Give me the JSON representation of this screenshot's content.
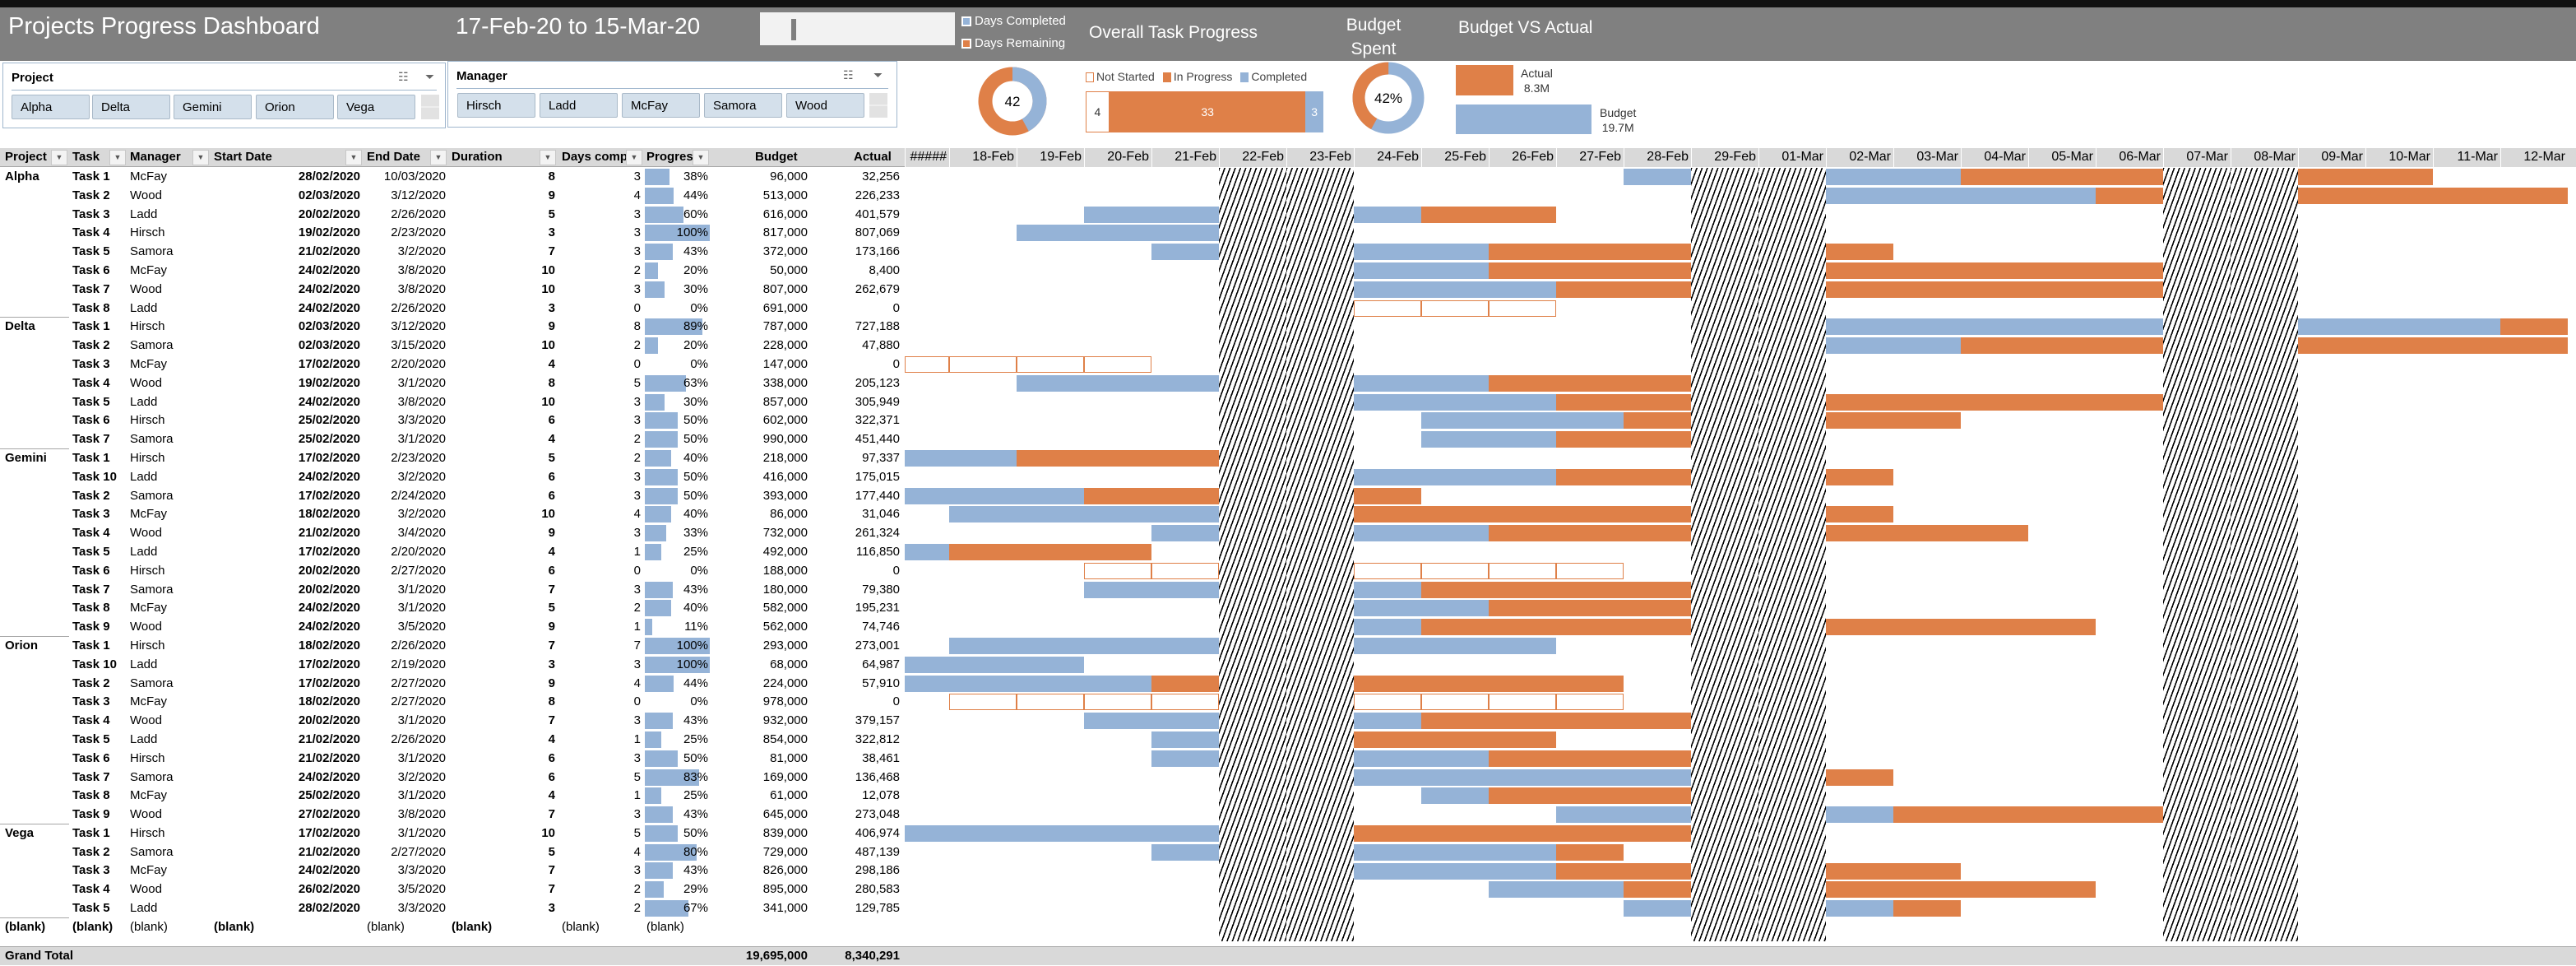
{
  "header": {
    "title": "Projects Progress Dashboard",
    "date_range": "17-Feb-20 to 15-Mar-20",
    "legend": {
      "completed": "Days Completed",
      "remaining": "Days Remaining"
    },
    "overall_task_progress": "Overall Task Progress",
    "budget_spent_line1": "Budget",
    "budget_spent_line2": "Spent",
    "budget_vs_actual": "Budget VS Actual"
  },
  "colors": {
    "completed": "#95b3d7",
    "remaining": "#df8048",
    "header": "#808080",
    "grid_header": "#d9d9d9"
  },
  "slicers": {
    "project": {
      "label": "Project",
      "items": [
        "Alpha",
        "Delta",
        "Gemini",
        "Orion",
        "Vega"
      ]
    },
    "manager": {
      "label": "Manager",
      "items": [
        "Hirsch",
        "Ladd",
        "McFay",
        "Samora",
        "Wood"
      ]
    }
  },
  "days_donut": {
    "label": "42",
    "completed_fraction": 0.42
  },
  "task_progress": {
    "legend": [
      "Not Started",
      "In Progress",
      "Completed"
    ],
    "not_started": 4,
    "in_progress": 33,
    "completed": 3,
    "labels": [
      "4",
      "33",
      "3"
    ]
  },
  "budget_donut": {
    "label": "42%",
    "spent_fraction": 0.42
  },
  "budget_vs_actual": {
    "actual_label": "Actual",
    "actual_value": "8.3M",
    "actual": 8.3,
    "budget_label": "Budget",
    "budget_value": "19.7M",
    "budget": 19.7
  },
  "table": {
    "columns": [
      "Project",
      "Task",
      "Manager",
      "Start Date",
      "End Date",
      "Duration",
      "Days comp",
      "Progres",
      "Budget",
      "Actual"
    ],
    "groups": [
      {
        "project": "Alpha",
        "rows": [
          [
            "Task 1",
            "McFay",
            "28/02/2020",
            "10/03/2020",
            "8",
            "3",
            "38%",
            "96,000",
            "32,256"
          ],
          [
            "Task 2",
            "Wood",
            "02/03/2020",
            "3/12/2020",
            "9",
            "4",
            "44%",
            "513,000",
            "226,233"
          ],
          [
            "Task 3",
            "Ladd",
            "20/02/2020",
            "2/26/2020",
            "5",
            "3",
            "60%",
            "616,000",
            "401,579"
          ],
          [
            "Task 4",
            "Hirsch",
            "19/02/2020",
            "2/23/2020",
            "3",
            "3",
            "100%",
            "817,000",
            "807,069"
          ],
          [
            "Task 5",
            "Samora",
            "21/02/2020",
            "3/2/2020",
            "7",
            "3",
            "43%",
            "372,000",
            "173,166"
          ],
          [
            "Task 6",
            "McFay",
            "24/02/2020",
            "3/8/2020",
            "10",
            "2",
            "20%",
            "50,000",
            "8,400"
          ],
          [
            "Task 7",
            "Wood",
            "24/02/2020",
            "3/8/2020",
            "10",
            "3",
            "30%",
            "807,000",
            "262,679"
          ],
          [
            "Task 8",
            "Ladd",
            "24/02/2020",
            "2/26/2020",
            "3",
            "0",
            "0%",
            "691,000",
            "0"
          ]
        ]
      },
      {
        "project": "Delta",
        "rows": [
          [
            "Task 1",
            "Hirsch",
            "02/03/2020",
            "3/12/2020",
            "9",
            "8",
            "89%",
            "787,000",
            "727,188"
          ],
          [
            "Task 2",
            "Samora",
            "02/03/2020",
            "3/15/2020",
            "10",
            "2",
            "20%",
            "228,000",
            "47,880"
          ],
          [
            "Task 3",
            "McFay",
            "17/02/2020",
            "2/20/2020",
            "4",
            "0",
            "0%",
            "147,000",
            "0"
          ],
          [
            "Task 4",
            "Wood",
            "19/02/2020",
            "3/1/2020",
            "8",
            "5",
            "63%",
            "338,000",
            "205,123"
          ],
          [
            "Task 5",
            "Ladd",
            "24/02/2020",
            "3/8/2020",
            "10",
            "3",
            "30%",
            "857,000",
            "305,949"
          ],
          [
            "Task 6",
            "Hirsch",
            "25/02/2020",
            "3/3/2020",
            "6",
            "3",
            "50%",
            "602,000",
            "322,371"
          ],
          [
            "Task 7",
            "Samora",
            "25/02/2020",
            "3/1/2020",
            "4",
            "2",
            "50%",
            "990,000",
            "451,440"
          ]
        ]
      },
      {
        "project": "Gemini",
        "rows": [
          [
            "Task 1",
            "Hirsch",
            "17/02/2020",
            "2/23/2020",
            "5",
            "2",
            "40%",
            "218,000",
            "97,337"
          ],
          [
            "Task 10",
            "Ladd",
            "24/02/2020",
            "3/2/2020",
            "6",
            "3",
            "50%",
            "416,000",
            "175,015"
          ],
          [
            "Task 2",
            "Samora",
            "17/02/2020",
            "2/24/2020",
            "6",
            "3",
            "50%",
            "393,000",
            "177,440"
          ],
          [
            "Task 3",
            "McFay",
            "18/02/2020",
            "3/2/2020",
            "10",
            "4",
            "40%",
            "86,000",
            "31,046"
          ],
          [
            "Task 4",
            "Wood",
            "21/02/2020",
            "3/4/2020",
            "9",
            "3",
            "33%",
            "732,000",
            "261,324"
          ],
          [
            "Task 5",
            "Ladd",
            "17/02/2020",
            "2/20/2020",
            "4",
            "1",
            "25%",
            "492,000",
            "116,850"
          ],
          [
            "Task 6",
            "Hirsch",
            "20/02/2020",
            "2/27/2020",
            "6",
            "0",
            "0%",
            "188,000",
            "0"
          ],
          [
            "Task 7",
            "Samora",
            "20/02/2020",
            "3/1/2020",
            "7",
            "3",
            "43%",
            "180,000",
            "79,380"
          ],
          [
            "Task 8",
            "McFay",
            "24/02/2020",
            "3/1/2020",
            "5",
            "2",
            "40%",
            "582,000",
            "195,231"
          ],
          [
            "Task 9",
            "Wood",
            "24/02/2020",
            "3/5/2020",
            "9",
            "1",
            "11%",
            "562,000",
            "74,746"
          ]
        ]
      },
      {
        "project": "Orion",
        "rows": [
          [
            "Task 1",
            "Hirsch",
            "18/02/2020",
            "2/26/2020",
            "7",
            "7",
            "100%",
            "293,000",
            "273,001"
          ],
          [
            "Task 10",
            "Ladd",
            "17/02/2020",
            "2/19/2020",
            "3",
            "3",
            "100%",
            "68,000",
            "64,987"
          ],
          [
            "Task 2",
            "Samora",
            "17/02/2020",
            "2/27/2020",
            "9",
            "4",
            "44%",
            "224,000",
            "57,910"
          ],
          [
            "Task 3",
            "McFay",
            "18/02/2020",
            "2/27/2020",
            "8",
            "0",
            "0%",
            "978,000",
            "0"
          ],
          [
            "Task 4",
            "Wood",
            "20/02/2020",
            "3/1/2020",
            "7",
            "3",
            "43%",
            "932,000",
            "379,157"
          ],
          [
            "Task 5",
            "Ladd",
            "21/02/2020",
            "2/26/2020",
            "4",
            "1",
            "25%",
            "854,000",
            "322,812"
          ],
          [
            "Task 6",
            "Hirsch",
            "21/02/2020",
            "3/1/2020",
            "6",
            "3",
            "50%",
            "81,000",
            "38,461"
          ],
          [
            "Task 7",
            "Samora",
            "24/02/2020",
            "3/2/2020",
            "6",
            "5",
            "83%",
            "169,000",
            "136,468"
          ],
          [
            "Task 8",
            "McFay",
            "25/02/2020",
            "3/1/2020",
            "4",
            "1",
            "25%",
            "61,000",
            "12,078"
          ],
          [
            "Task 9",
            "Wood",
            "27/02/2020",
            "3/8/2020",
            "7",
            "3",
            "43%",
            "645,000",
            "273,048"
          ]
        ]
      },
      {
        "project": "Vega",
        "rows": [
          [
            "Task 1",
            "Hirsch",
            "17/02/2020",
            "3/1/2020",
            "10",
            "5",
            "50%",
            "839,000",
            "406,974"
          ],
          [
            "Task 2",
            "Samora",
            "21/02/2020",
            "2/27/2020",
            "5",
            "4",
            "80%",
            "729,000",
            "487,139"
          ],
          [
            "Task 3",
            "McFay",
            "24/02/2020",
            "3/3/2020",
            "7",
            "3",
            "43%",
            "826,000",
            "298,186"
          ],
          [
            "Task 4",
            "Wood",
            "26/02/2020",
            "3/5/2020",
            "7",
            "2",
            "29%",
            "895,000",
            "280,583"
          ],
          [
            "Task 5",
            "Ladd",
            "28/02/2020",
            "3/3/2020",
            "3",
            "2",
            "67%",
            "341,000",
            "129,785"
          ]
        ]
      }
    ],
    "blank_row": [
      "(blank)",
      "(blank)",
      "(blank)",
      "(blank)",
      "(blank)",
      "(blank)",
      "(blank)",
      "(blank)"
    ],
    "grand_total": {
      "label": "Grand Total",
      "budget": "19,695,000",
      "actual": "8,340,291"
    }
  },
  "gantt": {
    "dates": [
      "#####",
      "18-Feb",
      "19-Feb",
      "20-Feb",
      "21-Feb",
      "22-Feb",
      "23-Feb",
      "24-Feb",
      "25-Feb",
      "26-Feb",
      "27-Feb",
      "28-Feb",
      "29-Feb",
      "01-Mar",
      "02-Mar",
      "03-Mar",
      "04-Mar",
      "05-Mar",
      "06-Mar",
      "07-Mar",
      "08-Mar",
      "09-Mar",
      "10-Mar",
      "11-Mar",
      "12-Mar"
    ],
    "first_date": "17/02/2020"
  }
}
